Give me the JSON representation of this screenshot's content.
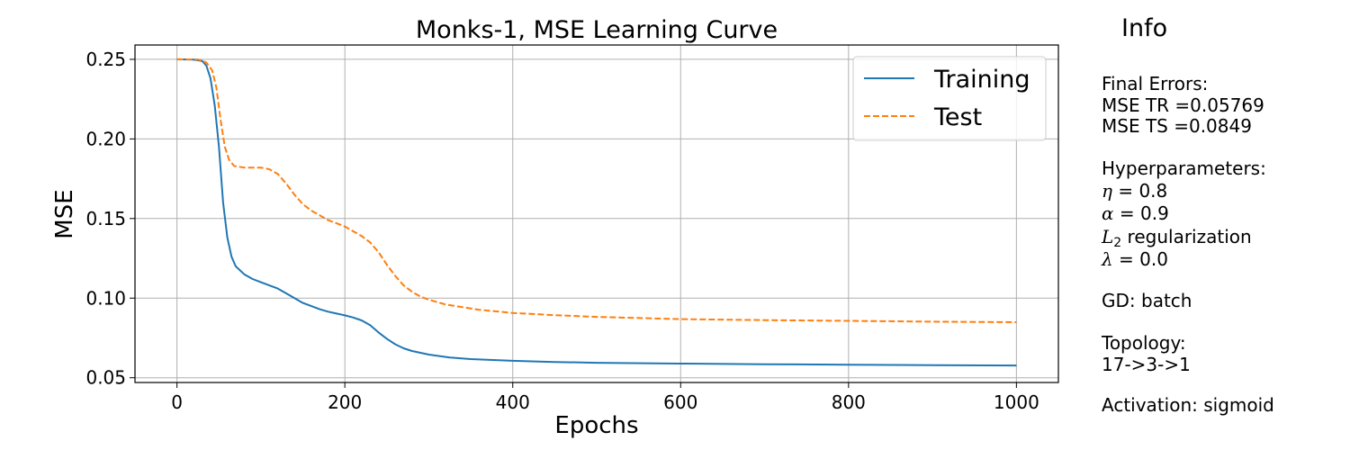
{
  "chart_data": {
    "type": "line",
    "title": "Monks-1, MSE Learning Curve",
    "xlabel": "Epochs",
    "ylabel": "MSE",
    "xlim": [
      -50,
      1050
    ],
    "ylim": [
      0.047,
      0.259
    ],
    "grid": true,
    "legend_position": "top-right",
    "xticks": [
      0,
      200,
      400,
      600,
      800,
      1000
    ],
    "xtick_labels": [
      "0",
      "200",
      "400",
      "600",
      "800",
      "1000"
    ],
    "yticks": [
      0.05,
      0.1,
      0.15,
      0.2,
      0.25
    ],
    "ytick_labels": [
      "0.05",
      "0.10",
      "0.15",
      "0.20",
      "0.25"
    ],
    "series": [
      {
        "name": "Training",
        "color": "#1f77b4",
        "style": "solid",
        "points": [
          [
            0,
            0.25
          ],
          [
            20,
            0.2498
          ],
          [
            30,
            0.249
          ],
          [
            35,
            0.246
          ],
          [
            40,
            0.238
          ],
          [
            45,
            0.221
          ],
          [
            50,
            0.195
          ],
          [
            55,
            0.16
          ],
          [
            60,
            0.138
          ],
          [
            65,
            0.126
          ],
          [
            70,
            0.12
          ],
          [
            80,
            0.115
          ],
          [
            90,
            0.112
          ],
          [
            100,
            0.11
          ],
          [
            110,
            0.108
          ],
          [
            120,
            0.106
          ],
          [
            130,
            0.103
          ],
          [
            140,
            0.1
          ],
          [
            150,
            0.097
          ],
          [
            160,
            0.095
          ],
          [
            170,
            0.093
          ],
          [
            180,
            0.0915
          ],
          [
            190,
            0.0903
          ],
          [
            200,
            0.0892
          ],
          [
            210,
            0.0878
          ],
          [
            220,
            0.086
          ],
          [
            230,
            0.083
          ],
          [
            240,
            0.0785
          ],
          [
            250,
            0.0745
          ],
          [
            260,
            0.071
          ],
          [
            270,
            0.0685
          ],
          [
            280,
            0.0668
          ],
          [
            300,
            0.0645
          ],
          [
            325,
            0.0627
          ],
          [
            350,
            0.0617
          ],
          [
            400,
            0.0606
          ],
          [
            450,
            0.0599
          ],
          [
            500,
            0.0594
          ],
          [
            600,
            0.0589
          ],
          [
            700,
            0.0585
          ],
          [
            800,
            0.0582
          ],
          [
            900,
            0.0579
          ],
          [
            1000,
            0.05769
          ]
        ]
      },
      {
        "name": "Test",
        "color": "#ff7f0e",
        "style": "dashed",
        "points": [
          [
            0,
            0.25
          ],
          [
            25,
            0.2499
          ],
          [
            35,
            0.248
          ],
          [
            42,
            0.243
          ],
          [
            47,
            0.232
          ],
          [
            52,
            0.212
          ],
          [
            57,
            0.195
          ],
          [
            62,
            0.187
          ],
          [
            68,
            0.183
          ],
          [
            80,
            0.182
          ],
          [
            100,
            0.182
          ],
          [
            110,
            0.181
          ],
          [
            120,
            0.178
          ],
          [
            130,
            0.172
          ],
          [
            140,
            0.165
          ],
          [
            150,
            0.159
          ],
          [
            160,
            0.155
          ],
          [
            170,
            0.152
          ],
          [
            180,
            0.149
          ],
          [
            190,
            0.147
          ],
          [
            200,
            0.145
          ],
          [
            210,
            0.142
          ],
          [
            220,
            0.139
          ],
          [
            230,
            0.135
          ],
          [
            240,
            0.129
          ],
          [
            250,
            0.121
          ],
          [
            260,
            0.114
          ],
          [
            270,
            0.108
          ],
          [
            280,
            0.104
          ],
          [
            290,
            0.101
          ],
          [
            300,
            0.099
          ],
          [
            320,
            0.096
          ],
          [
            340,
            0.0943
          ],
          [
            360,
            0.0927
          ],
          [
            400,
            0.0907
          ],
          [
            450,
            0.0893
          ],
          [
            500,
            0.0882
          ],
          [
            600,
            0.0868
          ],
          [
            700,
            0.0862
          ],
          [
            800,
            0.0857
          ],
          [
            900,
            0.0852
          ],
          [
            1000,
            0.0849
          ]
        ]
      }
    ]
  },
  "info": {
    "title": "Info",
    "final_errors_label": "Final Errors:",
    "mse_tr": "MSE TR =0.05769",
    "mse_ts": "MSE TS =0.0849",
    "hyperparameters_label": "Hyperparameters:",
    "eta_symbol": "η",
    "eta_value": " = 0.8",
    "alpha_symbol": "α",
    "alpha_value": " = 0.9",
    "l2_symbol": "L",
    "l2_subscript": "2",
    "l2_text": " regularization",
    "lambda_symbol": "λ",
    "lambda_value": " = 0.0",
    "gd_label": "GD: batch",
    "topology_label": "Topology:",
    "topology_value": "17->3->1",
    "activation_label": "Activation: sigmoid"
  }
}
